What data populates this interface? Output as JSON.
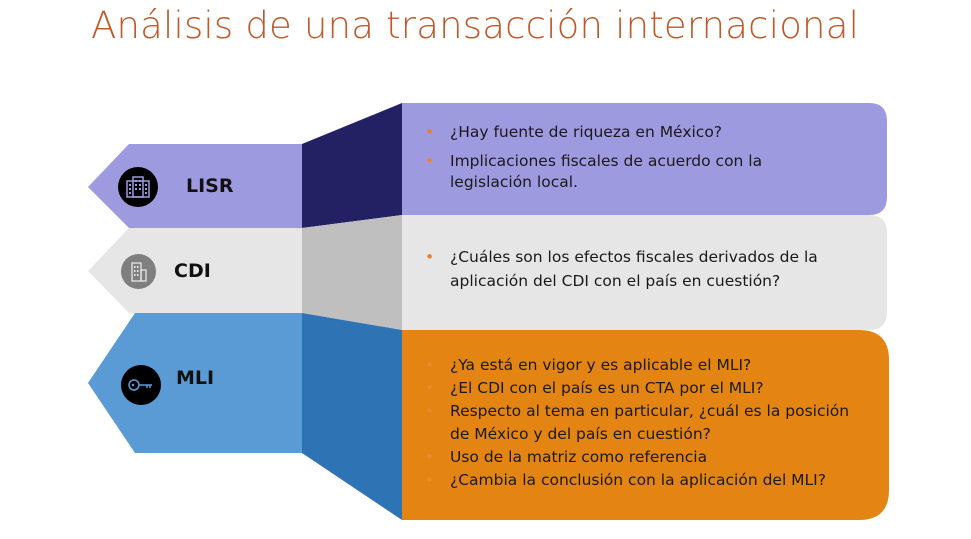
{
  "title": "Análisis de una transacción internacional",
  "colors": {
    "title": "#c0582a",
    "lisr_arrow": "#9e9ae0",
    "lisr_connector": "#232163",
    "cdi_arrow": "#e6e6e6",
    "cdi_connector": "#bfbfbf",
    "mli_arrow": "#5b9bd5",
    "mli_connector": "#2e74b5",
    "mli_box": "#e48412",
    "bullet": "#ed7d31"
  },
  "rows": [
    {
      "label": "LISR",
      "icon": "office-building-icon",
      "bullets": [
        "¿Hay fuente de riqueza en México?",
        "Implicaciones fiscales de acuerdo con la legislación local."
      ]
    },
    {
      "label": "CDI",
      "icon": "building-icon",
      "bullets": [
        "¿Cuáles son los efectos fiscales derivados de la aplicación del CDI con el país en cuestión?"
      ]
    },
    {
      "label": "MLI",
      "icon": "key-icon",
      "bullets": [
        "¿Ya está en vigor y es aplicable el MLI?",
        "¿El CDI con el país es un CTA por el MLI?",
        "Respecto al tema en particular, ¿cuál es la posición de México y del país en cuestión?",
        "Uso de la matriz como referencia",
        "¿Cambia la conclusión con la aplicación del MLI?"
      ]
    }
  ]
}
